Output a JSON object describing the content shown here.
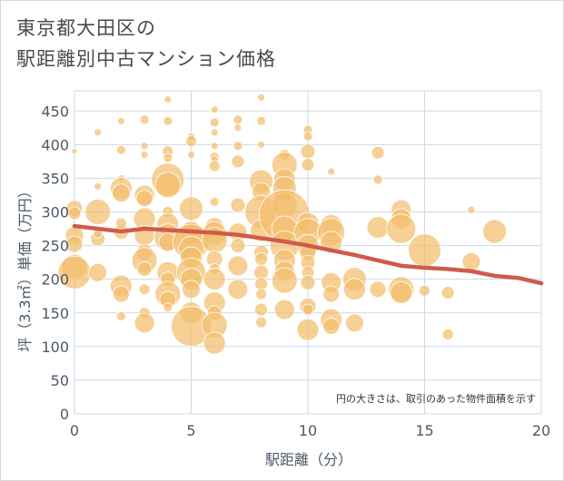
{
  "title": {
    "line1": "東京都大田区の",
    "line2": "駅距離別中古マンション価格"
  },
  "colors": {
    "bubble": "#f3be6c",
    "trend": "#d05a4c",
    "grid": "#c9d9e6",
    "axis_text": "#4a5a68"
  },
  "chart_data": {
    "type": "scatter",
    "xlabel": "駅距離（分）",
    "ylabel": "坪（3.3㎡）単価（万円）",
    "xlim": [
      0,
      20
    ],
    "ylim": [
      0,
      480
    ],
    "xticks": [
      "0",
      "5",
      "10",
      "15",
      "20"
    ],
    "yticks": [
      "0",
      "50",
      "100",
      "150",
      "200",
      "250",
      "300",
      "350",
      "400",
      "450"
    ],
    "note": "円の大きさは、取引のあった物件面積を示す",
    "trend": {
      "x": [
        0,
        1,
        2,
        3,
        4,
        5,
        6,
        7,
        8,
        9,
        10,
        11,
        12,
        13,
        14,
        15,
        16,
        17,
        18,
        19,
        20
      ],
      "y": [
        279,
        275,
        271,
        275,
        273,
        271,
        269,
        266,
        261,
        256,
        250,
        243,
        236,
        228,
        220,
        217,
        215,
        212,
        205,
        202,
        194
      ]
    },
    "bubbles": [
      {
        "x": 0,
        "y": 390,
        "r": 3
      },
      {
        "x": 0,
        "y": 305,
        "r": 9
      },
      {
        "x": 0,
        "y": 298,
        "r": 7
      },
      {
        "x": 0,
        "y": 265,
        "r": 10
      },
      {
        "x": 0,
        "y": 252,
        "r": 9
      },
      {
        "x": 0,
        "y": 218,
        "r": 14
      },
      {
        "x": 0,
        "y": 210,
        "r": 18
      },
      {
        "x": 1,
        "y": 418,
        "r": 4
      },
      {
        "x": 1,
        "y": 338,
        "r": 4
      },
      {
        "x": 1,
        "y": 300,
        "r": 14
      },
      {
        "x": 1,
        "y": 260,
        "r": 8
      },
      {
        "x": 1,
        "y": 210,
        "r": 10
      },
      {
        "x": 1,
        "y": 268,
        "r": 5
      },
      {
        "x": 2,
        "y": 435,
        "r": 4
      },
      {
        "x": 2,
        "y": 392,
        "r": 5
      },
      {
        "x": 2,
        "y": 350,
        "r": 4
      },
      {
        "x": 2,
        "y": 335,
        "r": 12
      },
      {
        "x": 2,
        "y": 328,
        "r": 10
      },
      {
        "x": 2,
        "y": 270,
        "r": 8
      },
      {
        "x": 2,
        "y": 283,
        "r": 6
      },
      {
        "x": 2,
        "y": 190,
        "r": 12
      },
      {
        "x": 2,
        "y": 178,
        "r": 9
      },
      {
        "x": 2,
        "y": 145,
        "r": 5
      },
      {
        "x": 3,
        "y": 437,
        "r": 5
      },
      {
        "x": 3,
        "y": 398,
        "r": 4
      },
      {
        "x": 3,
        "y": 385,
        "r": 4
      },
      {
        "x": 3,
        "y": 325,
        "r": 11
      },
      {
        "x": 3,
        "y": 320,
        "r": 9
      },
      {
        "x": 3,
        "y": 290,
        "r": 12
      },
      {
        "x": 3,
        "y": 265,
        "r": 11
      },
      {
        "x": 3,
        "y": 240,
        "r": 9
      },
      {
        "x": 3,
        "y": 228,
        "r": 14
      },
      {
        "x": 3,
        "y": 215,
        "r": 8
      },
      {
        "x": 3,
        "y": 185,
        "r": 6
      },
      {
        "x": 3,
        "y": 150,
        "r": 6
      },
      {
        "x": 3,
        "y": 135,
        "r": 11
      },
      {
        "x": 4,
        "y": 467,
        "r": 4
      },
      {
        "x": 4,
        "y": 435,
        "r": 5
      },
      {
        "x": 4,
        "y": 390,
        "r": 6
      },
      {
        "x": 4,
        "y": 380,
        "r": 5
      },
      {
        "x": 4,
        "y": 348,
        "r": 18
      },
      {
        "x": 4,
        "y": 340,
        "r": 14
      },
      {
        "x": 4,
        "y": 300,
        "r": 6
      },
      {
        "x": 4,
        "y": 282,
        "r": 12
      },
      {
        "x": 4,
        "y": 262,
        "r": 15
      },
      {
        "x": 4,
        "y": 255,
        "r": 10
      },
      {
        "x": 4,
        "y": 210,
        "r": 12
      },
      {
        "x": 4,
        "y": 200,
        "r": 8
      },
      {
        "x": 4,
        "y": 178,
        "r": 14
      },
      {
        "x": 4,
        "y": 170,
        "r": 9
      },
      {
        "x": 4,
        "y": 158,
        "r": 5
      },
      {
        "x": 5,
        "y": 412,
        "r": 4
      },
      {
        "x": 5,
        "y": 405,
        "r": 6
      },
      {
        "x": 5,
        "y": 385,
        "r": 4
      },
      {
        "x": 5,
        "y": 305,
        "r": 13
      },
      {
        "x": 5,
        "y": 275,
        "r": 8
      },
      {
        "x": 5,
        "y": 268,
        "r": 13
      },
      {
        "x": 5,
        "y": 255,
        "r": 20
      },
      {
        "x": 5,
        "y": 245,
        "r": 14
      },
      {
        "x": 5,
        "y": 232,
        "r": 12
      },
      {
        "x": 5,
        "y": 210,
        "r": 16
      },
      {
        "x": 5,
        "y": 200,
        "r": 12
      },
      {
        "x": 5,
        "y": 185,
        "r": 10
      },
      {
        "x": 5,
        "y": 150,
        "r": 12
      },
      {
        "x": 5,
        "y": 130,
        "r": 22
      },
      {
        "x": 6,
        "y": 452,
        "r": 4
      },
      {
        "x": 6,
        "y": 433,
        "r": 5
      },
      {
        "x": 6,
        "y": 418,
        "r": 4
      },
      {
        "x": 6,
        "y": 398,
        "r": 4
      },
      {
        "x": 6,
        "y": 382,
        "r": 5
      },
      {
        "x": 6,
        "y": 378,
        "r": 4
      },
      {
        "x": 6,
        "y": 368,
        "r": 6
      },
      {
        "x": 6,
        "y": 315,
        "r": 5
      },
      {
        "x": 6,
        "y": 278,
        "r": 10
      },
      {
        "x": 6,
        "y": 268,
        "r": 13
      },
      {
        "x": 6,
        "y": 258,
        "r": 14
      },
      {
        "x": 6,
        "y": 230,
        "r": 9
      },
      {
        "x": 6,
        "y": 215,
        "r": 6
      },
      {
        "x": 6,
        "y": 200,
        "r": 12
      },
      {
        "x": 6,
        "y": 165,
        "r": 12
      },
      {
        "x": 6,
        "y": 150,
        "r": 8
      },
      {
        "x": 6,
        "y": 132,
        "r": 14
      },
      {
        "x": 6,
        "y": 105,
        "r": 12
      },
      {
        "x": 7,
        "y": 437,
        "r": 5
      },
      {
        "x": 7,
        "y": 425,
        "r": 4
      },
      {
        "x": 7,
        "y": 398,
        "r": 5
      },
      {
        "x": 7,
        "y": 375,
        "r": 7
      },
      {
        "x": 7,
        "y": 310,
        "r": 8
      },
      {
        "x": 7,
        "y": 270,
        "r": 10
      },
      {
        "x": 7,
        "y": 250,
        "r": 8
      },
      {
        "x": 7,
        "y": 220,
        "r": 11
      },
      {
        "x": 7,
        "y": 185,
        "r": 11
      },
      {
        "x": 8,
        "y": 470,
        "r": 4
      },
      {
        "x": 8,
        "y": 435,
        "r": 5
      },
      {
        "x": 8,
        "y": 400,
        "r": 4
      },
      {
        "x": 8,
        "y": 345,
        "r": 13
      },
      {
        "x": 8,
        "y": 330,
        "r": 10
      },
      {
        "x": 8,
        "y": 300,
        "r": 18
      },
      {
        "x": 8,
        "y": 272,
        "r": 12
      },
      {
        "x": 8,
        "y": 240,
        "r": 8
      },
      {
        "x": 8,
        "y": 230,
        "r": 7
      },
      {
        "x": 8,
        "y": 210,
        "r": 8
      },
      {
        "x": 8,
        "y": 193,
        "r": 7
      },
      {
        "x": 8,
        "y": 178,
        "r": 6
      },
      {
        "x": 8,
        "y": 155,
        "r": 7
      },
      {
        "x": 8,
        "y": 136,
        "r": 6
      },
      {
        "x": 9,
        "y": 385,
        "r": 6
      },
      {
        "x": 9,
        "y": 370,
        "r": 14
      },
      {
        "x": 9,
        "y": 348,
        "r": 12
      },
      {
        "x": 9,
        "y": 335,
        "r": 13
      },
      {
        "x": 9,
        "y": 310,
        "r": 14
      },
      {
        "x": 9,
        "y": 295,
        "r": 28
      },
      {
        "x": 9,
        "y": 275,
        "r": 14
      },
      {
        "x": 9,
        "y": 250,
        "r": 16
      },
      {
        "x": 9,
        "y": 228,
        "r": 12
      },
      {
        "x": 9,
        "y": 212,
        "r": 11
      },
      {
        "x": 9,
        "y": 198,
        "r": 14
      },
      {
        "x": 9,
        "y": 155,
        "r": 11
      },
      {
        "x": 10,
        "y": 422,
        "r": 5
      },
      {
        "x": 10,
        "y": 412,
        "r": 5
      },
      {
        "x": 10,
        "y": 390,
        "r": 8
      },
      {
        "x": 10,
        "y": 370,
        "r": 7
      },
      {
        "x": 10,
        "y": 283,
        "r": 12
      },
      {
        "x": 10,
        "y": 270,
        "r": 15
      },
      {
        "x": 10,
        "y": 250,
        "r": 12
      },
      {
        "x": 10,
        "y": 240,
        "r": 9
      },
      {
        "x": 10,
        "y": 225,
        "r": 8
      },
      {
        "x": 10,
        "y": 210,
        "r": 7
      },
      {
        "x": 10,
        "y": 195,
        "r": 8
      },
      {
        "x": 10,
        "y": 160,
        "r": 9
      },
      {
        "x": 10,
        "y": 155,
        "r": 6
      },
      {
        "x": 10,
        "y": 125,
        "r": 12
      },
      {
        "x": 11,
        "y": 360,
        "r": 4
      },
      {
        "x": 11,
        "y": 280,
        "r": 12
      },
      {
        "x": 11,
        "y": 270,
        "r": 15
      },
      {
        "x": 11,
        "y": 255,
        "r": 12
      },
      {
        "x": 11,
        "y": 195,
        "r": 11
      },
      {
        "x": 11,
        "y": 178,
        "r": 9
      },
      {
        "x": 11,
        "y": 140,
        "r": 12
      },
      {
        "x": 11,
        "y": 130,
        "r": 9
      },
      {
        "x": 12,
        "y": 200,
        "r": 13
      },
      {
        "x": 12,
        "y": 185,
        "r": 12
      },
      {
        "x": 12,
        "y": 135,
        "r": 10
      },
      {
        "x": 13,
        "y": 388,
        "r": 7
      },
      {
        "x": 13,
        "y": 348,
        "r": 5
      },
      {
        "x": 13,
        "y": 277,
        "r": 12
      },
      {
        "x": 13,
        "y": 185,
        "r": 9
      },
      {
        "x": 14,
        "y": 303,
        "r": 11
      },
      {
        "x": 14,
        "y": 290,
        "r": 11
      },
      {
        "x": 14,
        "y": 275,
        "r": 16
      },
      {
        "x": 14,
        "y": 185,
        "r": 14
      },
      {
        "x": 14,
        "y": 180,
        "r": 12
      },
      {
        "x": 15,
        "y": 243,
        "r": 18
      },
      {
        "x": 15,
        "y": 183,
        "r": 6
      },
      {
        "x": 16,
        "y": 180,
        "r": 7
      },
      {
        "x": 16,
        "y": 118,
        "r": 6
      },
      {
        "x": 17,
        "y": 303,
        "r": 4
      },
      {
        "x": 17,
        "y": 226,
        "r": 10
      },
      {
        "x": 18,
        "y": 271,
        "r": 13
      }
    ]
  }
}
